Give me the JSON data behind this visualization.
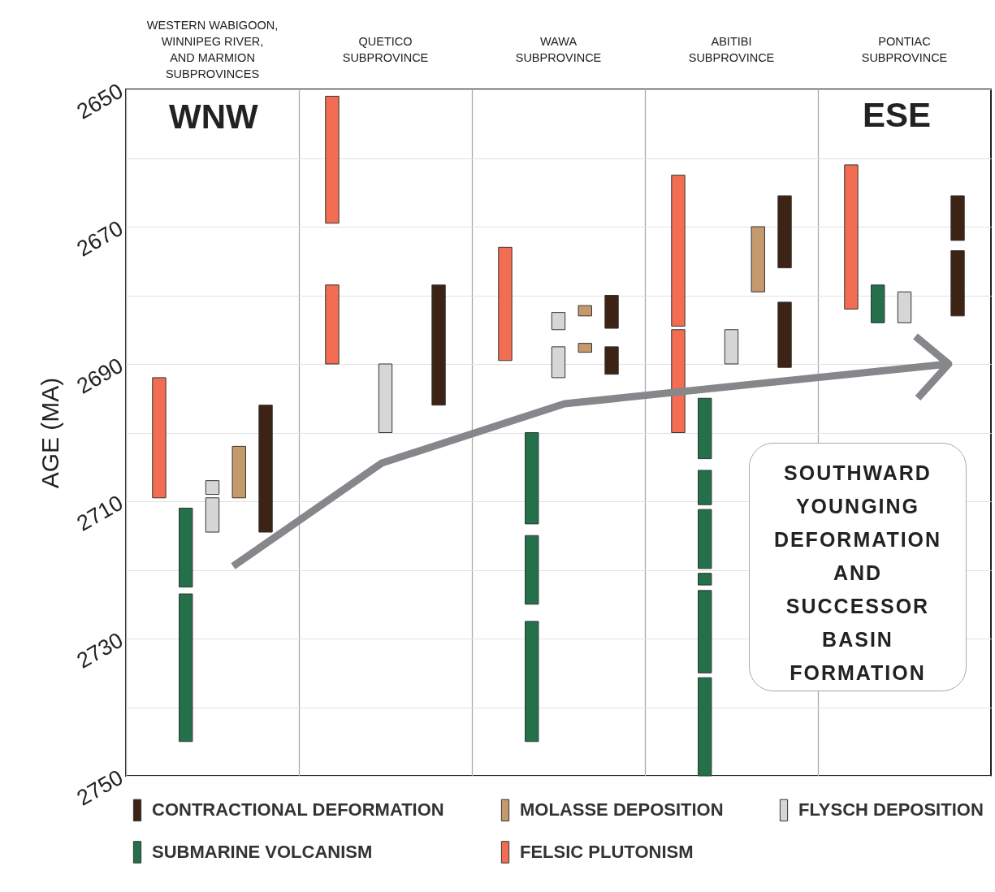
{
  "chart_data": {
    "type": "bar",
    "categories": [
      "WESTERN WABIGOON, WINNIPEG RIVER, AND MARMION SUBPROVINCES",
      "QUETICO SUBPROVINCE",
      "WAWA SUBPROVINCE",
      "ABITIBI SUBPROVINCE",
      "PONTIAC SUBPROVINCE"
    ],
    "ylabel": "AGE (MA)",
    "ylim": [
      2750,
      2650
    ],
    "yticks": [
      2650,
      {
        "value": 2660,
        "label": null
      },
      2670,
      {
        "value": 2680,
        "label": null
      },
      2690,
      {
        "value": 2700,
        "label": null
      },
      2710,
      {
        "value": 2720,
        "label": null
      },
      2730,
      {
        "value": 2740,
        "label": null
      },
      2750
    ],
    "series": [
      {
        "name": "CONTRACTIONAL DEFORMATION",
        "color": "#3d2314",
        "base": [
          2696,
          2678.5,
          2680,
          2665.5,
          2665.5
        ],
        "values": [
          18.5,
          17.5,
          4.8,
          10.5,
          6.5
        ]
      },
      {
        "color": "#3d2314",
        "base": [
          null,
          null,
          2687.5,
          2681,
          2673.5
        ],
        "values": [
          null,
          null,
          4,
          9.5,
          9.5
        ]
      },
      {
        "name": "MOLASSE DEPOSITION",
        "color": "#c49a6c",
        "base": [
          2702,
          null,
          2681.5,
          2670,
          null
        ],
        "values": [
          7.5,
          null,
          1.5,
          9.5,
          null
        ]
      },
      {
        "color": "#c49a6c",
        "base": [
          null,
          null,
          2687,
          null,
          null
        ],
        "values": [
          null,
          null,
          1.3,
          null,
          null
        ]
      },
      {
        "name": "FLYSCH DEPOSITION",
        "color": "#d6d6d6",
        "base": [
          2707,
          2690,
          2682.5,
          2685,
          2679.5
        ],
        "values": [
          2,
          10,
          2.5,
          5,
          4.5
        ]
      },
      {
        "color": "#d6d6d6",
        "base": [
          2709.5,
          null,
          2687.5,
          null,
          null
        ],
        "values": [
          5,
          null,
          4.5,
          null,
          null
        ]
      },
      {
        "name": "SUBMARINE VOLCANISM",
        "color": "#23704a",
        "base": [
          2711,
          null,
          2700,
          2695,
          2678.5
        ],
        "values": [
          11.5,
          null,
          13.3,
          8.8,
          5.5
        ]
      },
      {
        "color": "#23704a",
        "base": [
          2723.5,
          null,
          2715,
          2705.5,
          null
        ],
        "values": [
          21.5,
          null,
          10,
          5,
          null
        ]
      },
      {
        "color": "#23704a",
        "base": [
          null,
          null,
          2727.5,
          2711.2,
          null
        ],
        "values": [
          null,
          null,
          17.5,
          8.6,
          null
        ]
      },
      {
        "color": "#23704a",
        "base": [
          null,
          null,
          null,
          2720.5,
          null
        ],
        "values": [
          null,
          null,
          null,
          1.7,
          null
        ]
      },
      {
        "color": "#23704a",
        "base": [
          null,
          null,
          null,
          2723,
          null
        ],
        "values": [
          null,
          null,
          null,
          12,
          null
        ]
      },
      {
        "color": "#23704a",
        "base": [
          null,
          null,
          null,
          2735.7,
          null
        ],
        "values": [
          null,
          null,
          null,
          14.3,
          null
        ]
      },
      {
        "name": "FELSIC PLUTONISM",
        "color": "#f26d52",
        "base": [
          2692,
          2651,
          2673,
          2662.5,
          2661
        ],
        "values": [
          17.5,
          18.5,
          16.5,
          22,
          21
        ]
      },
      {
        "color": "#f26d52",
        "base": [
          null,
          2678.5,
          null,
          2685,
          null
        ],
        "values": [
          null,
          11.5,
          null,
          15,
          null
        ]
      }
    ],
    "grid": true,
    "legend": "bottom",
    "annotations": [
      "WNW",
      "ESE",
      "SOUTHWARD YOUNGING DEFORMATION AND SUCCESSOR BASIN FORMATION"
    ]
  }
}
